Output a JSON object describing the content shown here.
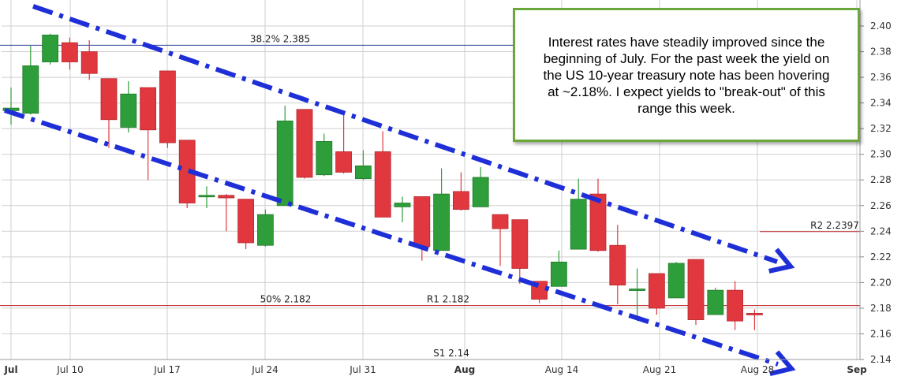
{
  "chart_data": {
    "type": "candlestick",
    "y_axis": {
      "range": [
        2.14,
        2.4
      ],
      "ticks": [
        "2.40",
        "2.38",
        "2.36",
        "2.34",
        "2.32",
        "2.30",
        "2.28",
        "2.26",
        "2.24",
        "2.22",
        "2.20",
        "2.18",
        "2.16",
        "2.14"
      ],
      "position": "right"
    },
    "x_axis": {
      "ticks": [
        "Jul",
        "Jul 10",
        "Jul 17",
        "Jul 24",
        "Jul 31",
        "Aug",
        "Aug 14",
        "Aug 21",
        "Aug 28",
        "Sep"
      ]
    },
    "candles": [
      {
        "o": 2.334,
        "h": 2.352,
        "l": 2.323,
        "c": 2.336
      },
      {
        "o": 2.332,
        "h": 2.385,
        "l": 2.331,
        "c": 2.369
      },
      {
        "o": 2.372,
        "h": 2.394,
        "l": 2.37,
        "c": 2.393
      },
      {
        "o": 2.387,
        "h": 2.391,
        "l": 2.366,
        "c": 2.372
      },
      {
        "o": 2.38,
        "h": 2.389,
        "l": 2.358,
        "c": 2.363
      },
      {
        "o": 2.359,
        "h": 2.359,
        "l": 2.305,
        "c": 2.327
      },
      {
        "o": 2.321,
        "h": 2.357,
        "l": 2.317,
        "c": 2.347
      },
      {
        "o": 2.352,
        "h": 2.352,
        "l": 2.28,
        "c": 2.319
      },
      {
        "o": 2.365,
        "h": 2.365,
        "l": 2.305,
        "c": 2.309
      },
      {
        "o": 2.311,
        "h": 2.311,
        "l": 2.258,
        "c": 2.262
      },
      {
        "o": 2.268,
        "h": 2.275,
        "l": 2.258,
        "c": 2.268
      },
      {
        "o": 2.268,
        "h": 2.269,
        "l": 2.24,
        "c": 2.266
      },
      {
        "o": 2.265,
        "h": 2.265,
        "l": 2.226,
        "c": 2.231
      },
      {
        "o": 2.229,
        "h": 2.257,
        "l": 2.228,
        "c": 2.253
      },
      {
        "o": 2.26,
        "h": 2.338,
        "l": 2.26,
        "c": 2.326
      },
      {
        "o": 2.335,
        "h": 2.335,
        "l": 2.281,
        "c": 2.282
      },
      {
        "o": 2.284,
        "h": 2.316,
        "l": 2.283,
        "c": 2.31
      },
      {
        "o": 2.302,
        "h": 2.332,
        "l": 2.285,
        "c": 2.286
      },
      {
        "o": 2.281,
        "h": 2.303,
        "l": 2.28,
        "c": 2.291
      },
      {
        "o": 2.302,
        "h": 2.318,
        "l": 2.251,
        "c": 2.251
      },
      {
        "o": 2.259,
        "h": 2.267,
        "l": 2.247,
        "c": 2.262
      },
      {
        "o": 2.267,
        "h": 2.267,
        "l": 2.217,
        "c": 2.228
      },
      {
        "o": 2.225,
        "h": 2.289,
        "l": 2.225,
        "c": 2.269
      },
      {
        "o": 2.271,
        "h": 2.286,
        "l": 2.256,
        "c": 2.257
      },
      {
        "o": 2.259,
        "h": 2.29,
        "l": 2.259,
        "c": 2.282
      },
      {
        "o": 2.253,
        "h": 2.253,
        "l": 2.213,
        "c": 2.242
      },
      {
        "o": 2.249,
        "h": 2.249,
        "l": 2.199,
        "c": 2.211
      },
      {
        "o": 2.201,
        "h": 2.201,
        "l": 2.184,
        "c": 2.187
      },
      {
        "o": 2.197,
        "h": 2.225,
        "l": 2.197,
        "c": 2.216
      },
      {
        "o": 2.226,
        "h": 2.281,
        "l": 2.226,
        "c": 2.265
      },
      {
        "o": 2.269,
        "h": 2.281,
        "l": 2.224,
        "c": 2.225
      },
      {
        "o": 2.229,
        "h": 2.245,
        "l": 2.183,
        "c": 2.198
      },
      {
        "o": 2.195,
        "h": 2.211,
        "l": 2.17,
        "c": 2.195
      },
      {
        "o": 2.207,
        "h": 2.207,
        "l": 2.175,
        "c": 2.18
      },
      {
        "o": 2.188,
        "h": 2.216,
        "l": 2.188,
        "c": 2.215
      },
      {
        "o": 2.218,
        "h": 2.218,
        "l": 2.167,
        "c": 2.171
      },
      {
        "o": 2.175,
        "h": 2.196,
        "l": 2.175,
        "c": 2.194
      },
      {
        "o": 2.194,
        "h": 2.201,
        "l": 2.163,
        "c": 2.17
      },
      {
        "o": 2.176,
        "h": 2.179,
        "l": 2.163,
        "c": 2.175
      }
    ],
    "horizontal_lines": [
      {
        "label": "38.2% 2.385",
        "value": 2.385,
        "color": "#2a3b9a"
      },
      {
        "label": "50% 2.182",
        "value": 2.182,
        "color": "#c0282a"
      },
      {
        "label": "R1 2.182",
        "value": 2.182,
        "color": "#c0282a"
      },
      {
        "label": "S1 2.14",
        "value": 2.14,
        "color": "#2a3b9a"
      },
      {
        "label": "R2 2.2397",
        "value": 2.2397,
        "color": "#c0282a"
      }
    ],
    "trend_lines": [
      {
        "from": {
          "x": "Jul",
          "y": 2.4
        },
        "to": {
          "x": "Aug 28",
          "y": 2.22
        }
      },
      {
        "from": {
          "x": "Jul",
          "y": 2.335
        },
        "to": {
          "x": "Aug 28",
          "y": 2.14
        }
      }
    ],
    "colors": {
      "up": "#2e9e3a",
      "down": "#e0383e",
      "trend": "#1f2fd8",
      "grid": "#cfcfcf",
      "box_border": "#6aa83c"
    }
  },
  "annotation": {
    "lines": [
      "Interest rates have steadily improved since the",
      "beginning of July.  For the past week the yield on",
      "the US 10-year treasury note has been hovering",
      "at ~2.18%.  I expect yields to \"break-out\" of this",
      "range this week."
    ]
  }
}
